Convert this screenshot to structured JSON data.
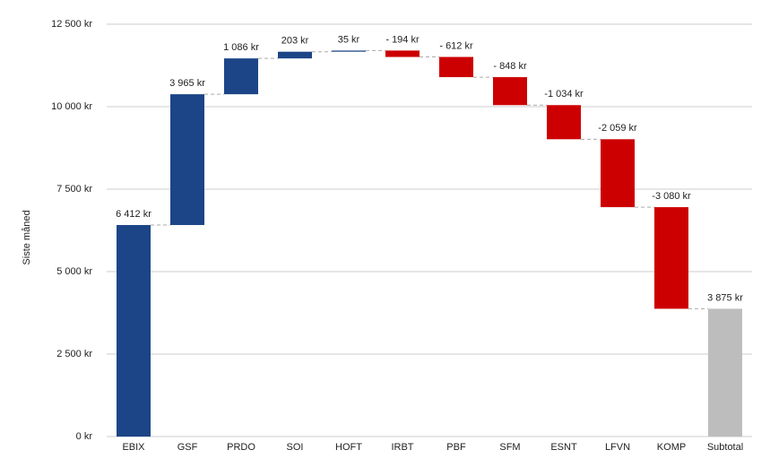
{
  "chart_data": {
    "type": "waterfall",
    "y_label": "Siste måned",
    "categories": [
      "EBIX",
      "GSF",
      "PRDO",
      "SOI",
      "HOFT",
      "IRBT",
      "PBF",
      "SFM",
      "ESNT",
      "LFVN",
      "KOMP",
      "Subtotal"
    ],
    "values": [
      6412,
      3965,
      1086,
      203,
      35,
      -194,
      -612,
      -848,
      -1034,
      -2059,
      -3080,
      3875
    ],
    "value_labels": [
      "6 412 kr",
      "3 965 kr",
      "1 086 kr",
      "203 kr",
      "35 kr",
      "- 194 kr",
      "- 612 kr",
      "- 848 kr",
      "-1 034 kr",
      "-2 059 kr",
      "-3 080 kr",
      "3 875 kr"
    ],
    "measure": [
      "relative",
      "relative",
      "relative",
      "relative",
      "relative",
      "relative",
      "relative",
      "relative",
      "relative",
      "relative",
      "relative",
      "total"
    ],
    "colors": {
      "increase": "#1c4587",
      "decrease": "#cc0000",
      "total": "#bdbdbd"
    },
    "label_colors": {
      "increase": "#3c5a96",
      "decrease": "#cc0000",
      "total": "#bdbdbd"
    },
    "ylim": [
      0,
      12500
    ],
    "yticks": [
      {
        "value": 0,
        "label": "0 kr"
      },
      {
        "value": 2500,
        "label": "2 500 kr"
      },
      {
        "value": 5000,
        "label": "5 000 kr"
      },
      {
        "value": 7500,
        "label": "7 500 kr"
      },
      {
        "value": 10000,
        "label": "10 000 kr"
      },
      {
        "value": 12500,
        "label": "12 500 kr"
      }
    ],
    "grid": true
  }
}
